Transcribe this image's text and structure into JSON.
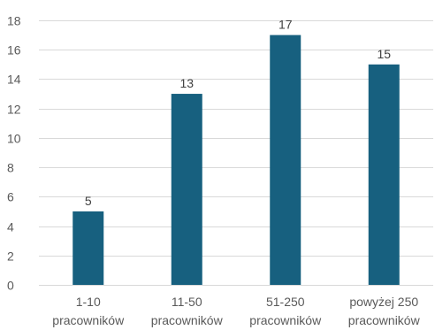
{
  "chart_data": {
    "type": "bar",
    "categories": [
      [
        "1-10",
        "pracowników"
      ],
      [
        "11-50",
        "pracowników"
      ],
      [
        "51-250",
        "pracowników"
      ],
      [
        "powyżej 250",
        "pracowników"
      ]
    ],
    "values": [
      5,
      13,
      17,
      15
    ],
    "data_labels": [
      "5",
      "13",
      "17",
      "15"
    ],
    "y_ticks": [
      "0",
      "2",
      "4",
      "6",
      "8",
      "10",
      "12",
      "14",
      "16",
      "18"
    ],
    "ylim": [
      0,
      18
    ],
    "grid": true,
    "legend": "none",
    "title": "",
    "xlabel": "",
    "ylabel": "",
    "bar_color": "#17607f",
    "grid_color": "#d9d9d9",
    "text_color": "#595959"
  }
}
